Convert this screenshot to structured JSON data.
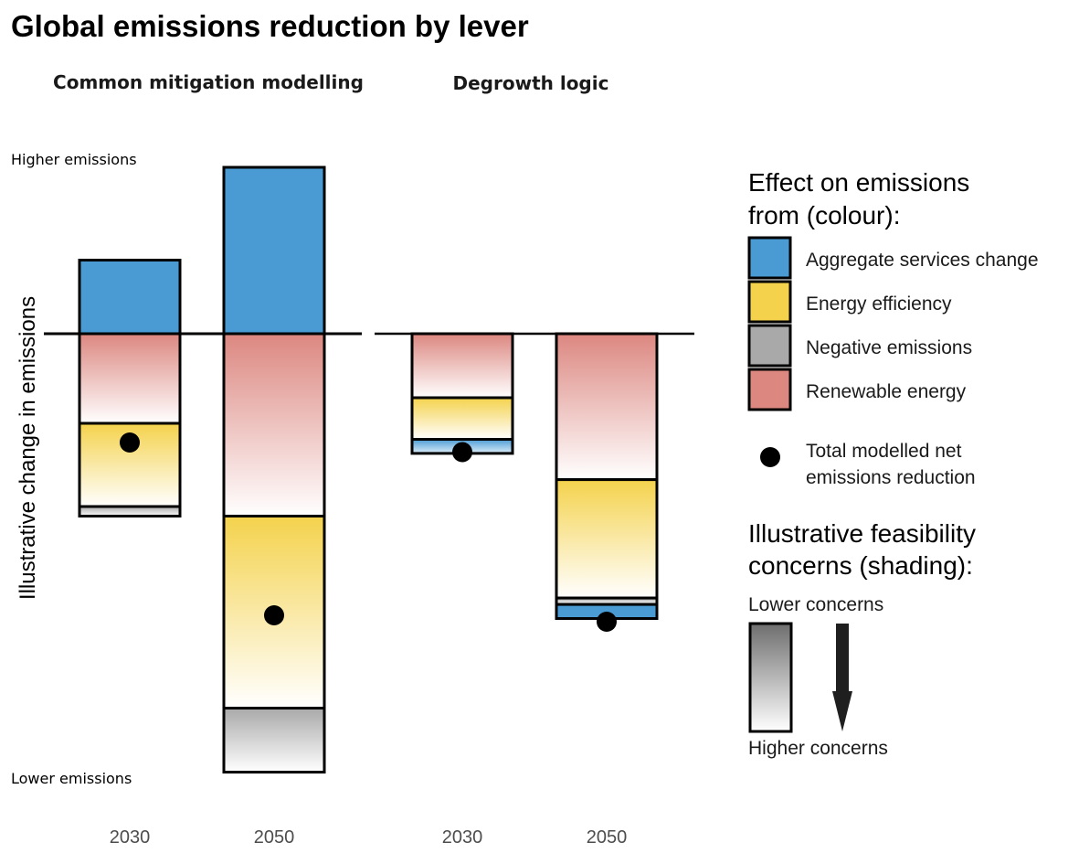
{
  "title": "Global emissions reduction by lever",
  "colors": {
    "aggregate_services_change": "#4a9bd4",
    "energy_efficiency": "#f4d24c",
    "negative_emissions": "#a9a9a9",
    "renewable_energy": "#dc8780",
    "outline": "#000000",
    "dot": "#000000"
  },
  "y_axis": {
    "label": "Illustrative change in emissions",
    "top_annotation": "Higher emissions",
    "bottom_annotation": "Lower emissions"
  },
  "legend": {
    "colour_title_line1": "Effect on emissions",
    "colour_title_line2": "from (colour):",
    "items": [
      {
        "key": "aggregate_services_change",
        "label": "Aggregate services change"
      },
      {
        "key": "energy_efficiency",
        "label": "Energy efficiency"
      },
      {
        "key": "negative_emissions",
        "label": "Negative emissions"
      },
      {
        "key": "renewable_energy",
        "label": "Renewable energy"
      }
    ],
    "dot_label_line1": "Total modelled net",
    "dot_label_line2": "emissions reduction",
    "shading_title_line1": "Illustrative feasibility",
    "shading_title_line2": "concerns (shading):",
    "shading_top": "Lower concerns",
    "shading_bottom": "Higher concerns"
  },
  "chart_data": {
    "type": "bar",
    "stacked": true,
    "ylim": [
      -7,
      2.6
    ],
    "facets": [
      {
        "name": "Common mitigation modelling",
        "categories": [
          "2030",
          "2050"
        ],
        "bars": [
          {
            "year": "2030",
            "net": -1.7,
            "segments": [
              {
                "lever": "aggregate_services_change",
                "value": 1.15
              },
              {
                "lever": "renewable_energy",
                "value": -1.4
              },
              {
                "lever": "energy_efficiency",
                "value": -1.3
              },
              {
                "lever": "negative_emissions",
                "value": -0.15
              }
            ]
          },
          {
            "year": "2050",
            "net": -4.4,
            "segments": [
              {
                "lever": "aggregate_services_change",
                "value": 2.6
              },
              {
                "lever": "renewable_energy",
                "value": -2.85
              },
              {
                "lever": "energy_efficiency",
                "value": -3.0
              },
              {
                "lever": "negative_emissions",
                "value": -1.0
              }
            ]
          }
        ]
      },
      {
        "name": "Degrowth logic",
        "categories": [
          "2030",
          "2050"
        ],
        "bars": [
          {
            "year": "2030",
            "net": -1.85,
            "segments": [
              {
                "lever": "renewable_energy",
                "value": -1.0
              },
              {
                "lever": "energy_efficiency",
                "value": -0.65
              },
              {
                "lever": "aggregate_services_change",
                "value": -0.22
              }
            ]
          },
          {
            "year": "2050",
            "net": -4.5,
            "segments": [
              {
                "lever": "renewable_energy",
                "value": -2.28
              },
              {
                "lever": "energy_efficiency",
                "value": -1.85
              },
              {
                "lever": "negative_emissions",
                "value": -0.1
              },
              {
                "lever": "aggregate_services_change",
                "value": -0.22
              }
            ]
          }
        ]
      }
    ]
  }
}
